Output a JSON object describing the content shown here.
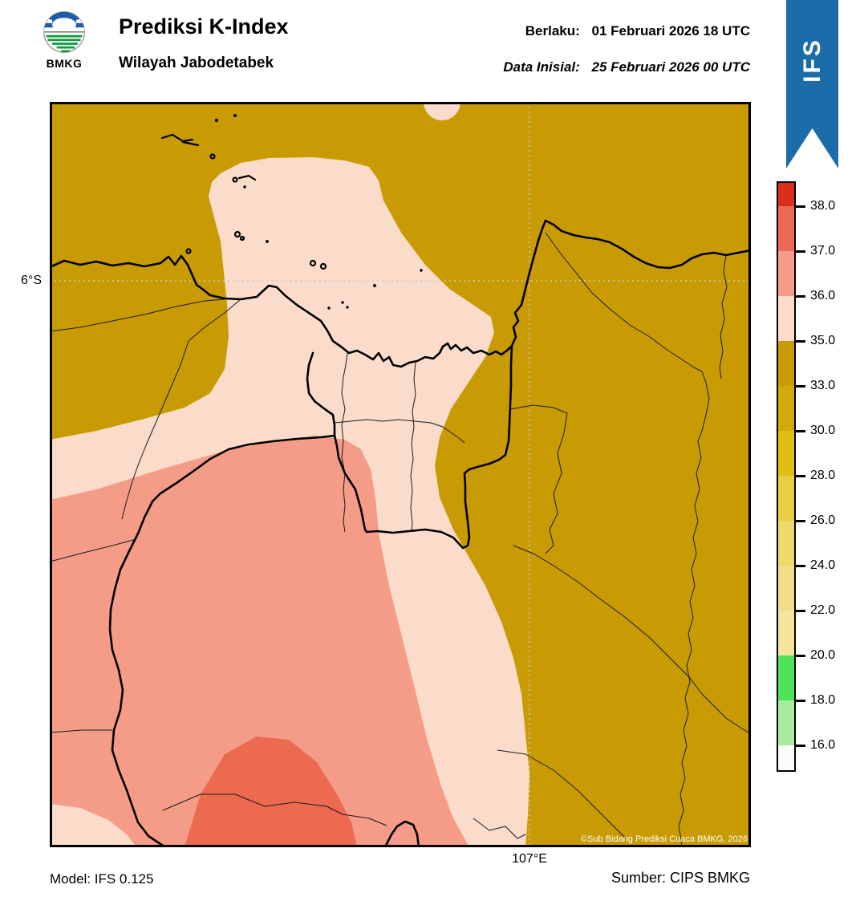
{
  "header": {
    "logo_text": "BMKG",
    "title": "Prediksi K-Index",
    "subtitle": "Wilayah Jabodetabek",
    "valid_label": "Berlaku:",
    "valid_value": "01 Februari 2026 18 UTC",
    "init_label": "Data Inisial:",
    "init_value": "25 Februari 2026 00 UTC",
    "ribbon_label": "IFS"
  },
  "map": {
    "lat_label": "6°S",
    "lon_label": "107°E",
    "copyright": "©Sub Bidang Prediksi Cuaca BMKG, 2026"
  },
  "footer": {
    "model": "Model: IFS 0.125",
    "source": "Sumber: CIPS BMKG"
  },
  "colors": {
    "olive": "#C89B04",
    "pale": "#FBDCCB",
    "salmon": "#F49C88",
    "dark_red": "#EC6A50",
    "ribbon_blue": "#1B6CA8",
    "logo_blue": "#1C5FA8",
    "logo_green": "#149A43",
    "coast_black": "#000000",
    "gridline": "#c9c9c9"
  },
  "colorbar": {
    "tick_labels": [
      "38.0",
      "37.0",
      "36.0",
      "35.0",
      "33.0",
      "30.0",
      "28.0",
      "26.0",
      "24.0",
      "22.0",
      "20.0",
      "18.0",
      "16.0"
    ],
    "segments": [
      "#DB2E1D",
      "#EE6A55",
      "#F49C88",
      "#FBDCCB",
      "#C89B04",
      "#D2A90A",
      "#E0BE12",
      "#E9CD42",
      "#EFD96B",
      "#F2DE89",
      "#F5E49D",
      "#4DE35C",
      "#A8ECA0",
      "#FBFBFB"
    ]
  },
  "chart_data": {
    "type": "heatmap",
    "title": "Prediksi K-Index",
    "region": "Wilayah Jabodetabek",
    "parameter": "K-Index",
    "valid_time": "01 Februari 2026 18 UTC",
    "initial_time": "25 Februari 2026 00 UTC",
    "model": "IFS 0.125",
    "source": "CIPS BMKG",
    "legend_levels": [
      16.0,
      18.0,
      20.0,
      22.0,
      24.0,
      26.0,
      28.0,
      30.0,
      33.0,
      35.0,
      36.0,
      37.0,
      38.0
    ],
    "legend_position": "right",
    "gridlines": {
      "latitude": "6°S",
      "longitude": "107°E",
      "style": "dotted"
    },
    "field_values": {
      "north_and_east_area": "33-35 (olive)",
      "central_diagonal_band_jakarta": "35-36 (pale pink)",
      "southwest_bogor_area": "36-37 (salmon)",
      "south_center_pocket": "37-38 (dark salmon)",
      "small_blob_top_edge_center": "35-36"
    }
  }
}
